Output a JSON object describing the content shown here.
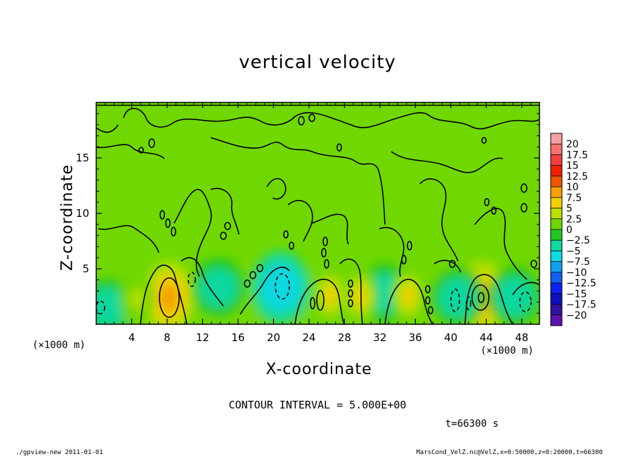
{
  "chart_data": {
    "type": "heatmap",
    "title": "vertical velocity",
    "xlabel": "X-coordinate",
    "ylabel": "Z-coordinate",
    "x_unit": "(×1000 m)",
    "xlim": [
      0,
      50
    ],
    "ylim": [
      0,
      20
    ],
    "x_ticks": [
      "4",
      "8",
      "12",
      "16",
      "20",
      "24",
      "28",
      "32",
      "36",
      "40",
      "44",
      "48"
    ],
    "y_ticks": [
      "5",
      "10",
      "15"
    ],
    "colorbar": {
      "levels": [
        "20",
        "17.5",
        "15",
        "12.5",
        "10",
        "7.5",
        "5",
        "2.5",
        "0",
        "−2.5",
        "−5",
        "−7.5",
        "−10",
        "−12.5",
        "−15",
        "−17.5",
        "−20"
      ],
      "colors": [
        "#f7a0a0",
        "#f77070",
        "#f54040",
        "#f02000",
        "#f05500",
        "#f5a000",
        "#f0d000",
        "#b8e000",
        "#70d800",
        "#20c820",
        "#10d8a0",
        "#10d8e0",
        "#10a0f0",
        "#1060f0",
        "#1020f0",
        "#1010c0",
        "#3010a0",
        "#6010b0"
      ]
    },
    "features": [
      {
        "x": 8.2,
        "z": 2.4,
        "value": 7.5,
        "kind": "updraft"
      },
      {
        "x": 43.6,
        "z": 2.4,
        "value": 7.5,
        "kind": "updraft"
      },
      {
        "x": 20.8,
        "z": 3.3,
        "value": -7.5,
        "kind": "downdraft"
      },
      {
        "x": 13.8,
        "z": 3.3,
        "value": -5,
        "kind": "downdraft"
      },
      {
        "x": 32.6,
        "z": 2.8,
        "value": -5,
        "kind": "downdraft"
      },
      {
        "x": 40.8,
        "z": 2.4,
        "value": -5,
        "kind": "downdraft"
      },
      {
        "x": 47.2,
        "z": 2.5,
        "value": -5,
        "kind": "downdraft"
      },
      {
        "x": 1.2,
        "z": 1.5,
        "value": -5,
        "kind": "downdraft"
      },
      {
        "x": 26.4,
        "z": 2.6,
        "value": 5,
        "kind": "updraft"
      },
      {
        "x": 29.8,
        "z": 2.5,
        "value": 5,
        "kind": "updraft"
      },
      {
        "x": 35.2,
        "z": 2.6,
        "value": 5,
        "kind": "updraft"
      },
      {
        "x": 4.6,
        "z": 2.3,
        "value": 2.5,
        "kind": "updraft"
      }
    ],
    "contour_interval": "CONTOUR INTERVAL = 5.000E+00",
    "time": "t=66300 s"
  },
  "footer": {
    "left": "./gpview-new  2011-01-01",
    "right": "MarsCond_VelZ.nc@VelZ,x=0:50000,z=0:20000,t=66300"
  }
}
